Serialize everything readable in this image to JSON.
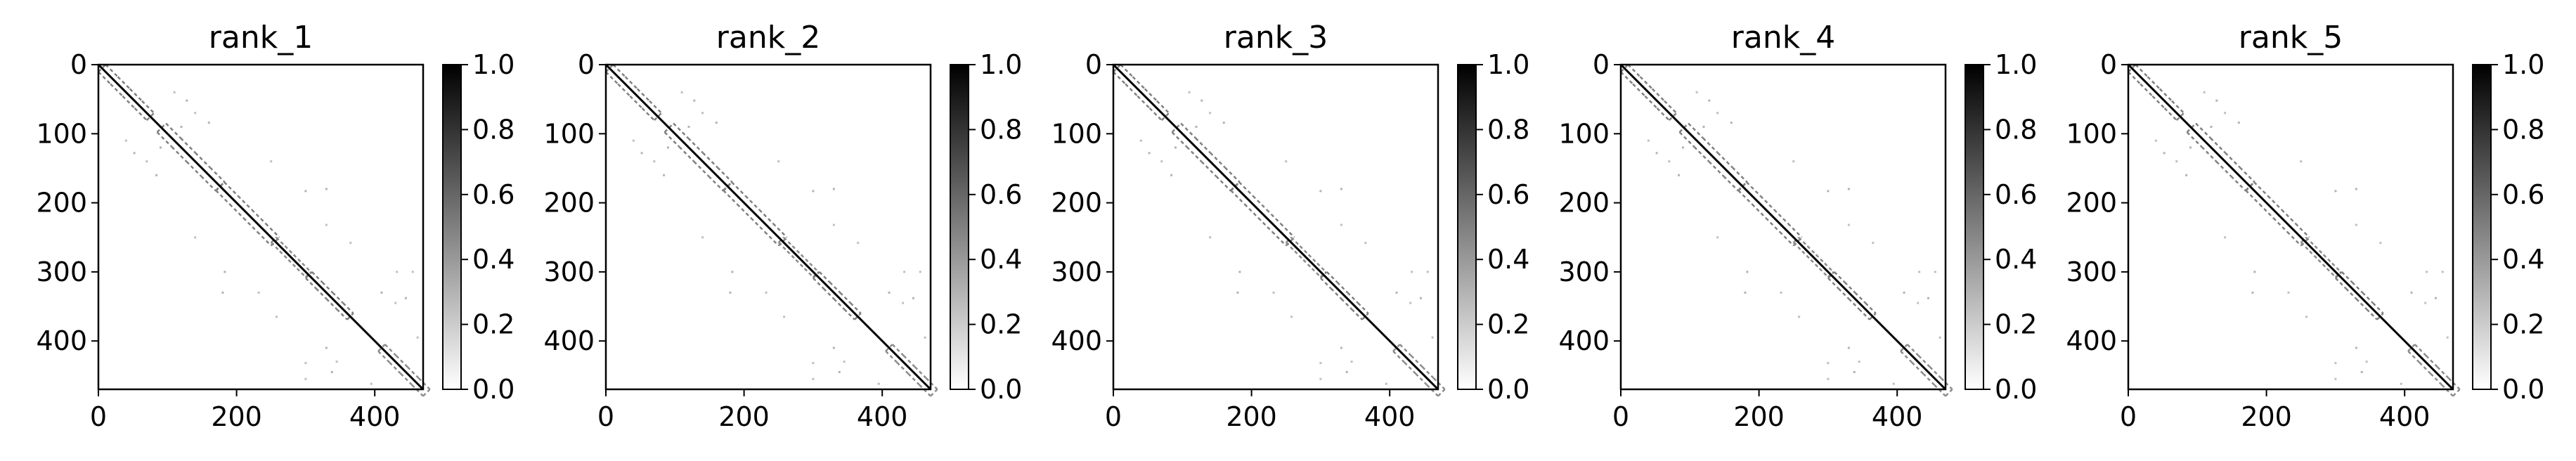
{
  "figure": {
    "panel_count": 5
  },
  "chart_data": [
    {
      "type": "heatmap",
      "title": "rank_1",
      "xlabel": "",
      "ylabel": "",
      "xlim": [
        0,
        470
      ],
      "ylim": [
        470,
        0
      ],
      "x_ticks": [
        0,
        200,
        400
      ],
      "y_ticks": [
        0,
        100,
        200,
        300,
        400
      ],
      "colorbar": {
        "min": 0.0,
        "max": 1.0,
        "ticks": [
          "0.0",
          "0.2",
          "0.4",
          "0.6",
          "0.8",
          "1.0"
        ],
        "colormap": "gray_r"
      },
      "grid": false,
      "diagonal": {
        "from": 0,
        "to": 470,
        "value": 1.0
      },
      "blocks": [
        {
          "range": [
            0,
            70
          ],
          "value": 0.5
        },
        {
          "range": [
            85,
            170
          ],
          "value": 0.5
        },
        {
          "range": [
            170,
            250
          ],
          "value": 0.5
        },
        {
          "range": [
            250,
            300
          ],
          "value": 0.45
        },
        {
          "range": [
            300,
            360
          ],
          "value": 0.5
        },
        {
          "range": [
            405,
            470
          ],
          "value": 0.45
        }
      ],
      "points": [
        {
          "x": 128,
          "y": 52,
          "value": 0.3
        },
        {
          "x": 140,
          "y": 70,
          "value": 0.25
        },
        {
          "x": 160,
          "y": 84,
          "value": 0.3
        },
        {
          "x": 250,
          "y": 140,
          "value": 0.25
        },
        {
          "x": 300,
          "y": 183,
          "value": 0.3
        },
        {
          "x": 330,
          "y": 232,
          "value": 0.25
        },
        {
          "x": 365,
          "y": 258,
          "value": 0.25
        },
        {
          "x": 180,
          "y": 330,
          "value": 0.3
        },
        {
          "x": 432,
          "y": 300,
          "value": 0.25
        },
        {
          "x": 445,
          "y": 338,
          "value": 0.3
        },
        {
          "x": 462,
          "y": 395,
          "value": 0.25
        },
        {
          "x": 330,
          "y": 410,
          "value": 0.3
        },
        {
          "x": 345,
          "y": 430,
          "value": 0.25
        },
        {
          "x": 300,
          "y": 455,
          "value": 0.25
        },
        {
          "x": 90,
          "y": 120,
          "value": 0.3
        },
        {
          "x": 110,
          "y": 40,
          "value": 0.25
        }
      ]
    },
    {
      "type": "heatmap",
      "title": "rank_2",
      "xlabel": "",
      "ylabel": "",
      "xlim": [
        0,
        470
      ],
      "ylim": [
        470,
        0
      ],
      "x_ticks": [
        0,
        200,
        400
      ],
      "y_ticks": [
        0,
        100,
        200,
        300,
        400
      ],
      "colorbar": {
        "min": 0.0,
        "max": 1.0,
        "ticks": [
          "0.0",
          "0.2",
          "0.4",
          "0.6",
          "0.8",
          "1.0"
        ],
        "colormap": "gray_r"
      },
      "grid": false,
      "diagonal": {
        "from": 0,
        "to": 470,
        "value": 1.0
      },
      "blocks": [
        {
          "range": [
            0,
            70
          ],
          "value": 0.5
        },
        {
          "range": [
            85,
            170
          ],
          "value": 0.5
        },
        {
          "range": [
            170,
            250
          ],
          "value": 0.5
        },
        {
          "range": [
            250,
            300
          ],
          "value": 0.45
        },
        {
          "range": [
            300,
            360
          ],
          "value": 0.5
        },
        {
          "range": [
            405,
            470
          ],
          "value": 0.45
        }
      ],
      "points": [
        {
          "x": 128,
          "y": 52,
          "value": 0.3
        },
        {
          "x": 140,
          "y": 70,
          "value": 0.25
        },
        {
          "x": 160,
          "y": 84,
          "value": 0.3
        },
        {
          "x": 250,
          "y": 140,
          "value": 0.25
        },
        {
          "x": 300,
          "y": 183,
          "value": 0.3
        },
        {
          "x": 330,
          "y": 232,
          "value": 0.25
        },
        {
          "x": 365,
          "y": 258,
          "value": 0.25
        },
        {
          "x": 180,
          "y": 330,
          "value": 0.3
        },
        {
          "x": 432,
          "y": 300,
          "value": 0.25
        },
        {
          "x": 445,
          "y": 338,
          "value": 0.3
        },
        {
          "x": 462,
          "y": 395,
          "value": 0.25
        },
        {
          "x": 330,
          "y": 410,
          "value": 0.3
        },
        {
          "x": 345,
          "y": 430,
          "value": 0.25
        },
        {
          "x": 300,
          "y": 455,
          "value": 0.25
        },
        {
          "x": 90,
          "y": 120,
          "value": 0.3
        },
        {
          "x": 110,
          "y": 40,
          "value": 0.25
        }
      ]
    },
    {
      "type": "heatmap",
      "title": "rank_3",
      "xlabel": "",
      "ylabel": "",
      "xlim": [
        0,
        470
      ],
      "ylim": [
        470,
        0
      ],
      "x_ticks": [
        0,
        200,
        400
      ],
      "y_ticks": [
        0,
        100,
        200,
        300,
        400
      ],
      "colorbar": {
        "min": 0.0,
        "max": 1.0,
        "ticks": [
          "0.0",
          "0.2",
          "0.4",
          "0.6",
          "0.8",
          "1.0"
        ],
        "colormap": "gray_r"
      },
      "grid": false,
      "diagonal": {
        "from": 0,
        "to": 470,
        "value": 1.0
      },
      "blocks": [
        {
          "range": [
            0,
            70
          ],
          "value": 0.5
        },
        {
          "range": [
            85,
            170
          ],
          "value": 0.5
        },
        {
          "range": [
            170,
            250
          ],
          "value": 0.5
        },
        {
          "range": [
            250,
            300
          ],
          "value": 0.45
        },
        {
          "range": [
            300,
            360
          ],
          "value": 0.5
        },
        {
          "range": [
            405,
            470
          ],
          "value": 0.45
        }
      ],
      "points": [
        {
          "x": 128,
          "y": 52,
          "value": 0.3
        },
        {
          "x": 140,
          "y": 70,
          "value": 0.25
        },
        {
          "x": 160,
          "y": 84,
          "value": 0.3
        },
        {
          "x": 250,
          "y": 140,
          "value": 0.25
        },
        {
          "x": 300,
          "y": 183,
          "value": 0.3
        },
        {
          "x": 330,
          "y": 232,
          "value": 0.25
        },
        {
          "x": 365,
          "y": 258,
          "value": 0.25
        },
        {
          "x": 180,
          "y": 330,
          "value": 0.3
        },
        {
          "x": 432,
          "y": 300,
          "value": 0.25
        },
        {
          "x": 445,
          "y": 338,
          "value": 0.3
        },
        {
          "x": 462,
          "y": 395,
          "value": 0.25
        },
        {
          "x": 330,
          "y": 410,
          "value": 0.3
        },
        {
          "x": 345,
          "y": 430,
          "value": 0.25
        },
        {
          "x": 300,
          "y": 455,
          "value": 0.25
        },
        {
          "x": 90,
          "y": 120,
          "value": 0.3
        },
        {
          "x": 110,
          "y": 40,
          "value": 0.25
        }
      ]
    },
    {
      "type": "heatmap",
      "title": "rank_4",
      "xlabel": "",
      "ylabel": "",
      "xlim": [
        0,
        470
      ],
      "ylim": [
        470,
        0
      ],
      "x_ticks": [
        0,
        200,
        400
      ],
      "y_ticks": [
        0,
        100,
        200,
        300,
        400
      ],
      "colorbar": {
        "min": 0.0,
        "max": 1.0,
        "ticks": [
          "0.0",
          "0.2",
          "0.4",
          "0.6",
          "0.8",
          "1.0"
        ],
        "colormap": "gray_r"
      },
      "grid": false,
      "diagonal": {
        "from": 0,
        "to": 470,
        "value": 1.0
      },
      "blocks": [
        {
          "range": [
            0,
            70
          ],
          "value": 0.5
        },
        {
          "range": [
            85,
            170
          ],
          "value": 0.5
        },
        {
          "range": [
            170,
            250
          ],
          "value": 0.5
        },
        {
          "range": [
            250,
            300
          ],
          "value": 0.45
        },
        {
          "range": [
            300,
            360
          ],
          "value": 0.5
        },
        {
          "range": [
            405,
            470
          ],
          "value": 0.45
        }
      ],
      "points": [
        {
          "x": 128,
          "y": 52,
          "value": 0.3
        },
        {
          "x": 140,
          "y": 70,
          "value": 0.25
        },
        {
          "x": 160,
          "y": 84,
          "value": 0.3
        },
        {
          "x": 250,
          "y": 140,
          "value": 0.25
        },
        {
          "x": 300,
          "y": 183,
          "value": 0.3
        },
        {
          "x": 330,
          "y": 232,
          "value": 0.25
        },
        {
          "x": 365,
          "y": 258,
          "value": 0.25
        },
        {
          "x": 180,
          "y": 330,
          "value": 0.3
        },
        {
          "x": 432,
          "y": 300,
          "value": 0.25
        },
        {
          "x": 445,
          "y": 338,
          "value": 0.3
        },
        {
          "x": 462,
          "y": 395,
          "value": 0.25
        },
        {
          "x": 330,
          "y": 410,
          "value": 0.3
        },
        {
          "x": 345,
          "y": 430,
          "value": 0.25
        },
        {
          "x": 300,
          "y": 455,
          "value": 0.25
        },
        {
          "x": 90,
          "y": 120,
          "value": 0.3
        },
        {
          "x": 110,
          "y": 40,
          "value": 0.25
        }
      ]
    },
    {
      "type": "heatmap",
      "title": "rank_5",
      "xlabel": "",
      "ylabel": "",
      "xlim": [
        0,
        470
      ],
      "ylim": [
        470,
        0
      ],
      "x_ticks": [
        0,
        200,
        400
      ],
      "y_ticks": [
        0,
        100,
        200,
        300,
        400
      ],
      "colorbar": {
        "min": 0.0,
        "max": 1.0,
        "ticks": [
          "0.0",
          "0.2",
          "0.4",
          "0.6",
          "0.8",
          "1.0"
        ],
        "colormap": "gray_r"
      },
      "grid": false,
      "diagonal": {
        "from": 0,
        "to": 470,
        "value": 1.0
      },
      "blocks": [
        {
          "range": [
            0,
            70
          ],
          "value": 0.5
        },
        {
          "range": [
            85,
            170
          ],
          "value": 0.5
        },
        {
          "range": [
            170,
            250
          ],
          "value": 0.5
        },
        {
          "range": [
            250,
            300
          ],
          "value": 0.45
        },
        {
          "range": [
            300,
            360
          ],
          "value": 0.5
        },
        {
          "range": [
            405,
            470
          ],
          "value": 0.45
        }
      ],
      "points": [
        {
          "x": 128,
          "y": 52,
          "value": 0.3
        },
        {
          "x": 140,
          "y": 70,
          "value": 0.25
        },
        {
          "x": 160,
          "y": 84,
          "value": 0.3
        },
        {
          "x": 250,
          "y": 140,
          "value": 0.25
        },
        {
          "x": 300,
          "y": 183,
          "value": 0.3
        },
        {
          "x": 330,
          "y": 232,
          "value": 0.25
        },
        {
          "x": 365,
          "y": 258,
          "value": 0.25
        },
        {
          "x": 180,
          "y": 330,
          "value": 0.3
        },
        {
          "x": 432,
          "y": 300,
          "value": 0.25
        },
        {
          "x": 445,
          "y": 338,
          "value": 0.3
        },
        {
          "x": 462,
          "y": 395,
          "value": 0.25
        },
        {
          "x": 330,
          "y": 410,
          "value": 0.3
        },
        {
          "x": 345,
          "y": 430,
          "value": 0.25
        },
        {
          "x": 300,
          "y": 455,
          "value": 0.25
        },
        {
          "x": 90,
          "y": 120,
          "value": 0.3
        },
        {
          "x": 110,
          "y": 40,
          "value": 0.25
        }
      ]
    }
  ]
}
